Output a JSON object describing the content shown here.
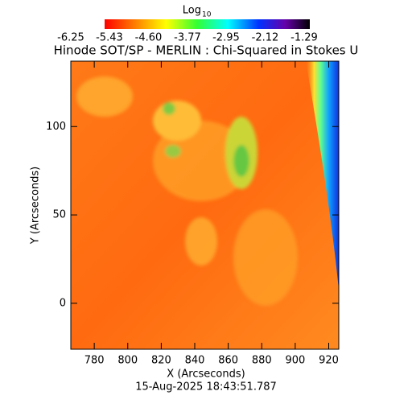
{
  "chart_data": {
    "type": "image",
    "title": "Hinode SOT/SP - MERLIN : Chi-Squared in Stokes U",
    "colorbar_title": "Log",
    "colorbar_title_sub": "10",
    "colorbar_lim": [
      -6.25,
      -1.29
    ],
    "colorbar_ticks": [
      -6.25,
      -5.43,
      -4.6,
      -3.77,
      -2.95,
      -2.12,
      -1.29
    ],
    "colorbar_tick_labels": [
      "-6.25",
      "-5.43",
      "-4.60",
      "-3.77",
      "-2.95",
      "-2.12",
      "-1.29"
    ],
    "xlabel": "X (Arcseconds)",
    "ylabel": "Y (Arcseconds)",
    "xlim": [
      766,
      926
    ],
    "ylim": [
      -26,
      137
    ],
    "xticks": [
      780,
      800,
      820,
      840,
      860,
      880,
      900,
      920
    ],
    "yticks": [
      0,
      50,
      100
    ],
    "footer": "15-Aug-2025 18:43:51.787"
  }
}
